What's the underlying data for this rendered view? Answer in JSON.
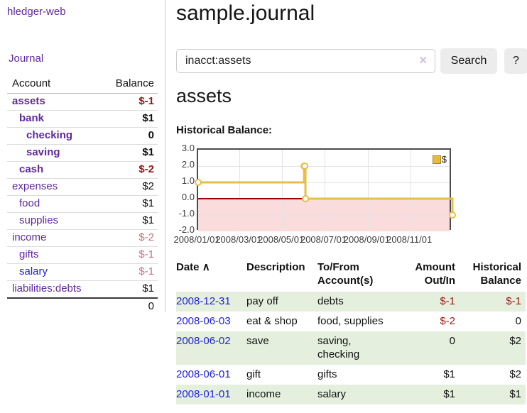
{
  "colors": {
    "link_purple": "#5f2a9e",
    "link_blue": "#2222dd",
    "negative_strong": "#9a1414",
    "negative_muted": "#c4747f",
    "table_stripe_green": "#e4f0dd",
    "chart_line_gold": "#e6be4a",
    "chart_negative_fill": "#fbdcdc",
    "chart_zero_line": "#9b0000"
  },
  "sidebar": {
    "brand": "hledger-web",
    "nav": {
      "journal": "Journal"
    },
    "accounts": {
      "col_account": "Account",
      "col_balance": "Balance",
      "rows": [
        {
          "label": "assets",
          "depth": 0,
          "bold": true,
          "balance": "$-1",
          "balance_tone": "negative-strong",
          "link_style": "purple"
        },
        {
          "label": "bank",
          "depth": 1,
          "bold": true,
          "balance": "$1",
          "balance_tone": "normal",
          "link_style": "purple"
        },
        {
          "label": "checking",
          "depth": 2,
          "bold": true,
          "balance": "0",
          "balance_tone": "normal",
          "link_style": "purple"
        },
        {
          "label": "saving",
          "depth": 2,
          "bold": true,
          "balance": "$1",
          "balance_tone": "normal",
          "link_style": "purple"
        },
        {
          "label": "cash",
          "depth": 1,
          "bold": true,
          "balance": "$-2",
          "balance_tone": "negative-strong",
          "link_style": "purple"
        },
        {
          "label": "expenses",
          "depth": 0,
          "bold": false,
          "balance": "$2",
          "balance_tone": "normal",
          "link_style": "purple"
        },
        {
          "label": "food",
          "depth": 1,
          "bold": false,
          "balance": "$1",
          "balance_tone": "normal",
          "link_style": "purple"
        },
        {
          "label": "supplies",
          "depth": 1,
          "bold": false,
          "balance": "$1",
          "balance_tone": "normal",
          "link_style": "purple"
        },
        {
          "label": "income",
          "depth": 0,
          "bold": false,
          "balance": "$-2",
          "balance_tone": "negative-muted",
          "link_style": "purple"
        },
        {
          "label": "gifts",
          "depth": 1,
          "bold": false,
          "balance": "$-1",
          "balance_tone": "negative-muted",
          "link_style": "purple"
        },
        {
          "label": "salary",
          "depth": 1,
          "bold": false,
          "balance": "$-1",
          "balance_tone": "negative-muted",
          "link_style": "blue"
        },
        {
          "label": "liabilities:debts",
          "depth": 0,
          "bold": false,
          "balance": "$1",
          "balance_tone": "normal",
          "link_style": "purple"
        }
      ],
      "total": "0"
    }
  },
  "main": {
    "title": "sample.journal",
    "search": {
      "value": "inacct:assets",
      "clear_icon": "✕",
      "button_label": "Search",
      "help_label": "?"
    },
    "account_heading": "assets",
    "chart_heading": "Historical Balance:",
    "transactions": {
      "headers": {
        "date": "Date",
        "sort_icon": "∧",
        "description": "Description",
        "accounts": "To/From\nAccount(s)",
        "amount": "Amount\nOut/In",
        "balance": "Historical\nBalance"
      },
      "rows": [
        {
          "date": "2008-12-31",
          "description": "pay off",
          "accounts": "debts",
          "amount": "$-1",
          "amount_negative": true,
          "balance": "$-1",
          "balance_negative": true
        },
        {
          "date": "2008-06-03",
          "description": "eat & shop",
          "accounts": "food, supplies",
          "amount": "$-2",
          "amount_negative": true,
          "balance": "0",
          "balance_negative": false
        },
        {
          "date": "2008-06-02",
          "description": "save",
          "accounts": "saving,\nchecking",
          "amount": "0",
          "amount_negative": false,
          "balance": "$2",
          "balance_negative": false
        },
        {
          "date": "2008-06-01",
          "description": "gift",
          "accounts": "gifts",
          "amount": "$1",
          "amount_negative": false,
          "balance": "$2",
          "balance_negative": false
        },
        {
          "date": "2008-01-01",
          "description": "income",
          "accounts": "salary",
          "amount": "$1",
          "amount_negative": false,
          "balance": "$1",
          "balance_negative": false
        }
      ]
    }
  },
  "chart_data": {
    "type": "line",
    "step": true,
    "title": "Historical Balance:",
    "series": [
      {
        "name": "$",
        "points": [
          [
            "2008-01-01",
            1
          ],
          [
            "2008-06-01",
            2
          ],
          [
            "2008-06-02",
            2
          ],
          [
            "2008-06-03",
            0
          ],
          [
            "2008-12-31",
            -1
          ]
        ]
      }
    ],
    "x_range": [
      "2008-01-01",
      "2008-12-31"
    ],
    "ylim": [
      -2,
      3
    ],
    "yticks": [
      3.0,
      2.0,
      1.0,
      0.0,
      -1.0,
      -2.0
    ],
    "xticks": [
      "2008/01/01",
      "2008/03/01",
      "2008/05/01",
      "2008/07/01",
      "2008/09/01",
      "2008/11/01"
    ],
    "xlabel": "",
    "ylabel": "",
    "grid": true,
    "legend_position": "top-right",
    "negative_region_shaded": true
  }
}
